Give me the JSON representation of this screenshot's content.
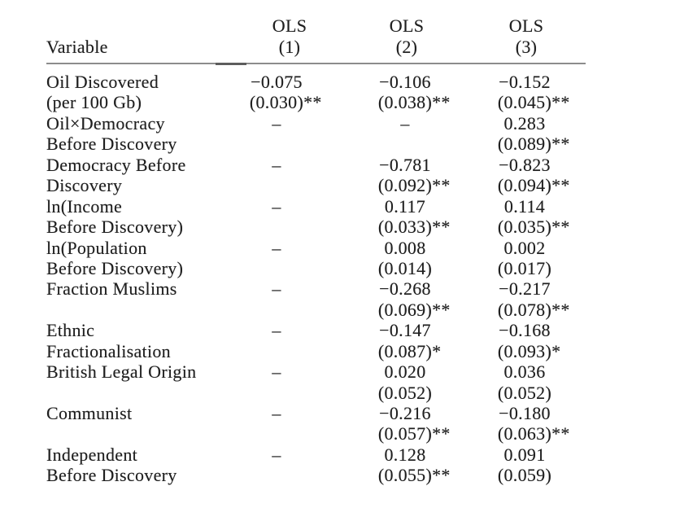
{
  "page": {
    "background_color": "#ffffff",
    "text_color": "#1f1f1f"
  },
  "table": {
    "rule_color": "#8c8c8c",
    "rule_dark_segment_color": "#5d5d5d",
    "header": {
      "variable_label": "Variable",
      "columns": [
        {
          "line1": "OLS",
          "line2": "(1)"
        },
        {
          "line1": "OLS",
          "line2": "(2)"
        },
        {
          "line1": "OLS",
          "line2": "(3)"
        }
      ]
    },
    "rows": [
      {
        "label1": "Oil Discovered",
        "label2": "(per 100 Gb)",
        "cells": [
          {
            "coef": "−0.075",
            "se": "(0.030)",
            "stars": "**"
          },
          {
            "coef": "−0.106",
            "se": "(0.038)",
            "stars": "**"
          },
          {
            "coef": "−0.152",
            "se": "(0.045)",
            "stars": "**"
          }
        ]
      },
      {
        "label1": "Oil×Democracy",
        "label2": "Before Discovery",
        "cells": [
          {
            "coef": "–",
            "se": "",
            "stars": ""
          },
          {
            "coef": "–",
            "se": "",
            "stars": ""
          },
          {
            "coef": "0.283",
            "se": "(0.089)",
            "stars": "**"
          }
        ]
      },
      {
        "label1": "Democracy Before",
        "label2": "Discovery",
        "cells": [
          {
            "coef": "–",
            "se": "",
            "stars": ""
          },
          {
            "coef": "−0.781",
            "se": "(0.092)",
            "stars": "**"
          },
          {
            "coef": "−0.823",
            "se": "(0.094)",
            "stars": "**"
          }
        ]
      },
      {
        "label1": "ln(Income",
        "label2": "Before Discovery)",
        "cells": [
          {
            "coef": "–",
            "se": "",
            "stars": ""
          },
          {
            "coef": "0.117",
            "se": "(0.033)",
            "stars": "**"
          },
          {
            "coef": "0.114",
            "se": "(0.035)",
            "stars": "**"
          }
        ]
      },
      {
        "label1": "ln(Population",
        "label2": "Before Discovery)",
        "cells": [
          {
            "coef": "–",
            "se": "",
            "stars": ""
          },
          {
            "coef": "0.008",
            "se": "(0.014)",
            "stars": ""
          },
          {
            "coef": "0.002",
            "se": "(0.017)",
            "stars": ""
          }
        ]
      },
      {
        "label1": "Fraction Muslims",
        "label2": "",
        "cells": [
          {
            "coef": "–",
            "se": "",
            "stars": ""
          },
          {
            "coef": "−0.268",
            "se": "(0.069)",
            "stars": "**"
          },
          {
            "coef": "−0.217",
            "se": "(0.078)",
            "stars": "**"
          }
        ]
      },
      {
        "label1": "Ethnic",
        "label2": "Fractionalisation",
        "cells": [
          {
            "coef": "–",
            "se": "",
            "stars": ""
          },
          {
            "coef": "−0.147",
            "se": "(0.087)",
            "stars": "*"
          },
          {
            "coef": "−0.168",
            "se": "(0.093)",
            "stars": "*"
          }
        ]
      },
      {
        "label1": "British Legal Origin",
        "label2": "",
        "cells": [
          {
            "coef": "–",
            "se": "",
            "stars": ""
          },
          {
            "coef": "0.020",
            "se": "(0.052)",
            "stars": ""
          },
          {
            "coef": "0.036",
            "se": "(0.052)",
            "stars": ""
          }
        ]
      },
      {
        "label1": "Communist",
        "label2": "",
        "cells": [
          {
            "coef": "–",
            "se": "",
            "stars": ""
          },
          {
            "coef": "−0.216",
            "se": "(0.057)",
            "stars": "**"
          },
          {
            "coef": "−0.180",
            "se": "(0.063)",
            "stars": "**"
          }
        ]
      },
      {
        "label1": "Independent",
        "label2": "Before Discovery",
        "cells": [
          {
            "coef": "–",
            "se": "",
            "stars": ""
          },
          {
            "coef": "0.128",
            "se": "(0.055)",
            "stars": "**"
          },
          {
            "coef": "0.091",
            "se": "(0.059)",
            "stars": ""
          }
        ]
      }
    ]
  }
}
